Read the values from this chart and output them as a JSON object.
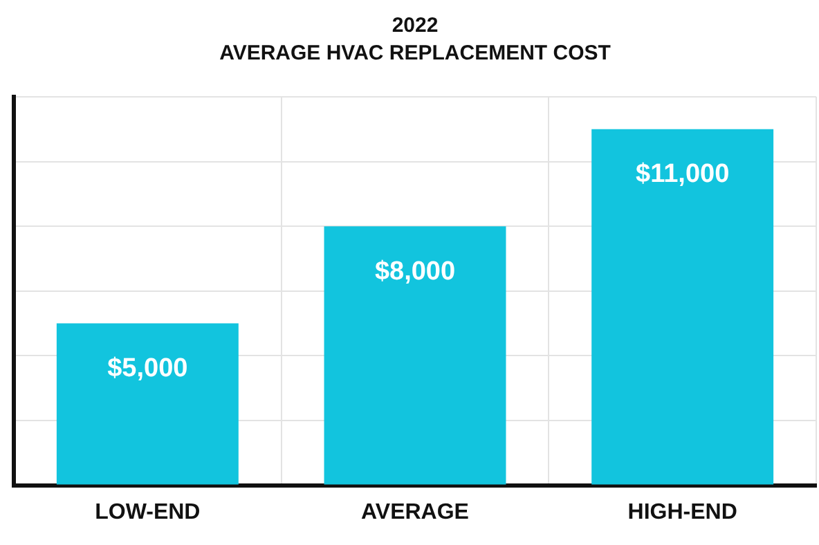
{
  "chart_data": {
    "type": "bar",
    "title": "2022",
    "subtitle": "AVERAGE HVAC REPLACEMENT COST",
    "categories": [
      "LOW-END",
      "AVERAGE",
      "HIGH-END"
    ],
    "values": [
      5000,
      8000,
      11000
    ],
    "value_labels": [
      "$5,000",
      "$8,000",
      "$11,000"
    ],
    "color": "#12c4de",
    "grid": true,
    "legend": false
  }
}
